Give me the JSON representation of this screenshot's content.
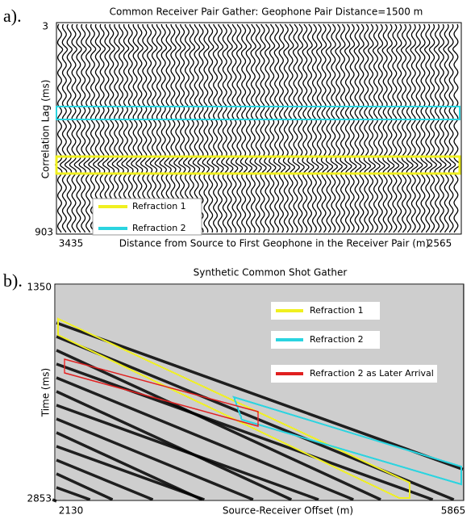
{
  "panel_a": {
    "label": "a).",
    "title": "Common Receiver Pair Gather: Geophone Pair Distance=1500 m",
    "y_label": "Correlation Lag (ms)",
    "x_label": "Distance from Source to First Geophone in the Receiver Pair (m)",
    "y_ticks": [
      3,
      903
    ],
    "x_ticks": [
      3435,
      2565
    ],
    "legend": [
      "Refraction 1",
      "Refraction 2"
    ]
  },
  "panel_b": {
    "label": "b).",
    "title": "Synthetic Common Shot Gather",
    "y_label": "Time (ms)",
    "x_label": "Source-Receiver Offset (m)",
    "y_ticks": [
      1350,
      2853
    ],
    "x_ticks": [
      2130,
      5865
    ],
    "legend": [
      "Refraction 1",
      "Refraction 2",
      "Refraction 2 as Later Arrival"
    ]
  }
}
